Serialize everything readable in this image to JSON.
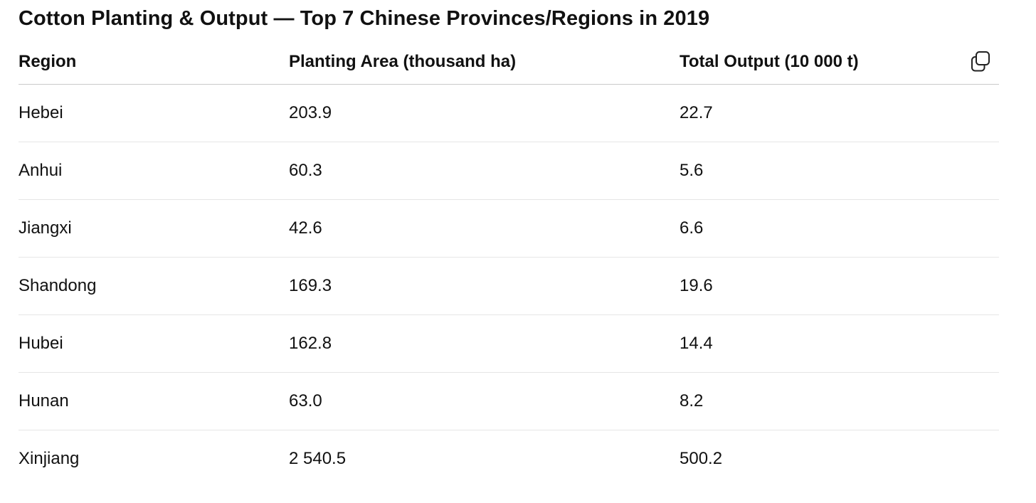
{
  "title": "Cotton Planting & Output — Top 7 Chinese Provinces/Regions in 2019",
  "copy_icon": "copy-icon",
  "table": {
    "headers": [
      "Region",
      "Planting Area (thousand ha)",
      "Total Output (10 000 t)"
    ],
    "rows": [
      [
        "Hebei",
        "203.9",
        "22.7"
      ],
      [
        "Anhui",
        "60.3",
        "5.6"
      ],
      [
        "Jiangxi",
        "42.6",
        "6.6"
      ],
      [
        "Shandong",
        "169.3",
        "19.6"
      ],
      [
        "Hubei",
        "162.8",
        "14.4"
      ],
      [
        "Hunan",
        "63.0",
        "8.2"
      ],
      [
        "Xinjiang",
        "2 540.5",
        "500.2"
      ]
    ]
  }
}
